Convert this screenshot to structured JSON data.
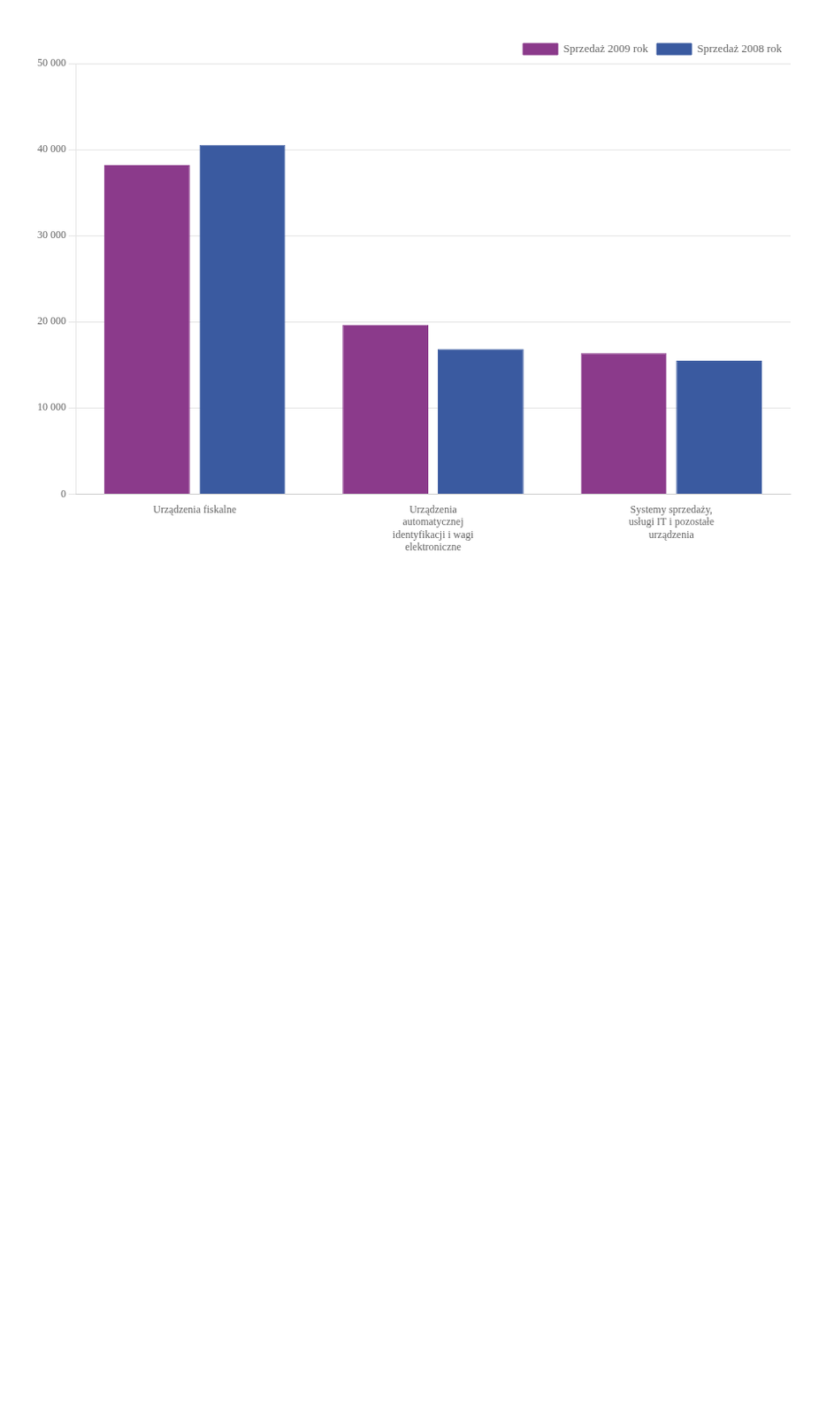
{
  "chart_data": {
    "type": "bar",
    "categories": [
      "Urządzenia fiskalne",
      "Urządzenia\nautomatycznej\nidentyfikacji i wagi\nelektroniczne",
      "Systemy sprzedaży,\nusługi IT i pozostałe\nurządzenia"
    ],
    "series": [
      {
        "name": "Sprzedaż 2009 rok",
        "color": "#8B3A8B",
        "values": [
          38189,
          19652,
          16361
        ]
      },
      {
        "name": "Sprzedaż 2008 rok",
        "color": "#3A5AA0",
        "values": [
          40529,
          16844,
          15472
        ]
      }
    ],
    "ylim": [
      0,
      50000
    ],
    "yticks": [
      0,
      {
        "value": 10000,
        "label": "10 000"
      },
      {
        "value": 20000,
        "label": "20 000"
      },
      {
        "value": 30000,
        "label": "30 000"
      },
      {
        "value": 40000,
        "label": "40 000"
      },
      {
        "value": 50000,
        "label": "50 000"
      }
    ],
    "grid": true,
    "legend": "upper right"
  }
}
